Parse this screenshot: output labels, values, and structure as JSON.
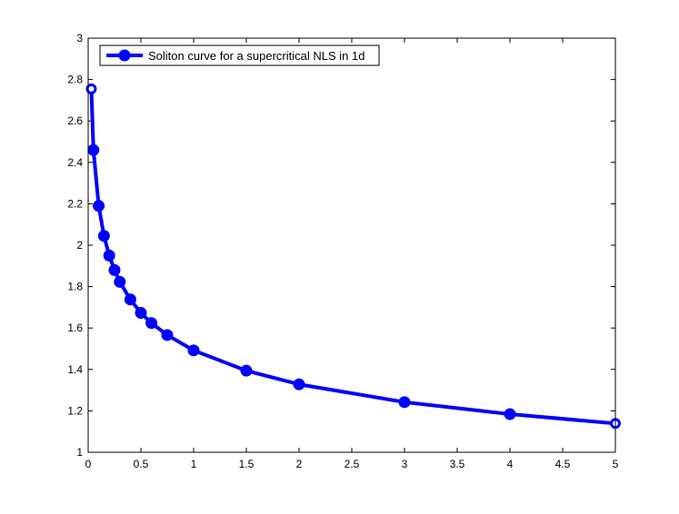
{
  "chart_data": {
    "type": "line",
    "title": "",
    "xlabel": "",
    "ylabel": "",
    "xlim": [
      0,
      5
    ],
    "ylim": [
      1,
      3
    ],
    "x_ticks": [
      0,
      0.5,
      1,
      1.5,
      2,
      2.5,
      3,
      3.5,
      4,
      4.5,
      5
    ],
    "x_tick_labels": [
      "0",
      "0.5",
      "1",
      "1.5",
      "2",
      "2.5",
      "3",
      "3.5",
      "4",
      "4.5",
      "5"
    ],
    "y_ticks": [
      1,
      1.2,
      1.4,
      1.6,
      1.8,
      2,
      2.2,
      2.4,
      2.6,
      2.8,
      3
    ],
    "y_tick_labels": [
      "1",
      "1.2",
      "1.4",
      "1.6",
      "1.8",
      "2",
      "2.2",
      "2.4",
      "2.6",
      "2.8",
      "3"
    ],
    "grid": false,
    "legend_position": "top-left",
    "series": [
      {
        "name": "Soliton curve for a supercritical NLS in 1d",
        "color": "#0000ff",
        "marker": "circle",
        "x": [
          0.03,
          0.05,
          0.1,
          0.15,
          0.2,
          0.25,
          0.3,
          0.4,
          0.5,
          0.6,
          0.75,
          1,
          1.5,
          2,
          3,
          4,
          5
        ],
        "y": [
          2.755,
          2.46,
          2.19,
          2.045,
          1.95,
          1.88,
          1.823,
          1.738,
          1.673,
          1.624,
          1.566,
          1.492,
          1.394,
          1.328,
          1.242,
          1.184,
          1.139
        ],
        "hollow_points": [
          0,
          16
        ]
      }
    ]
  }
}
